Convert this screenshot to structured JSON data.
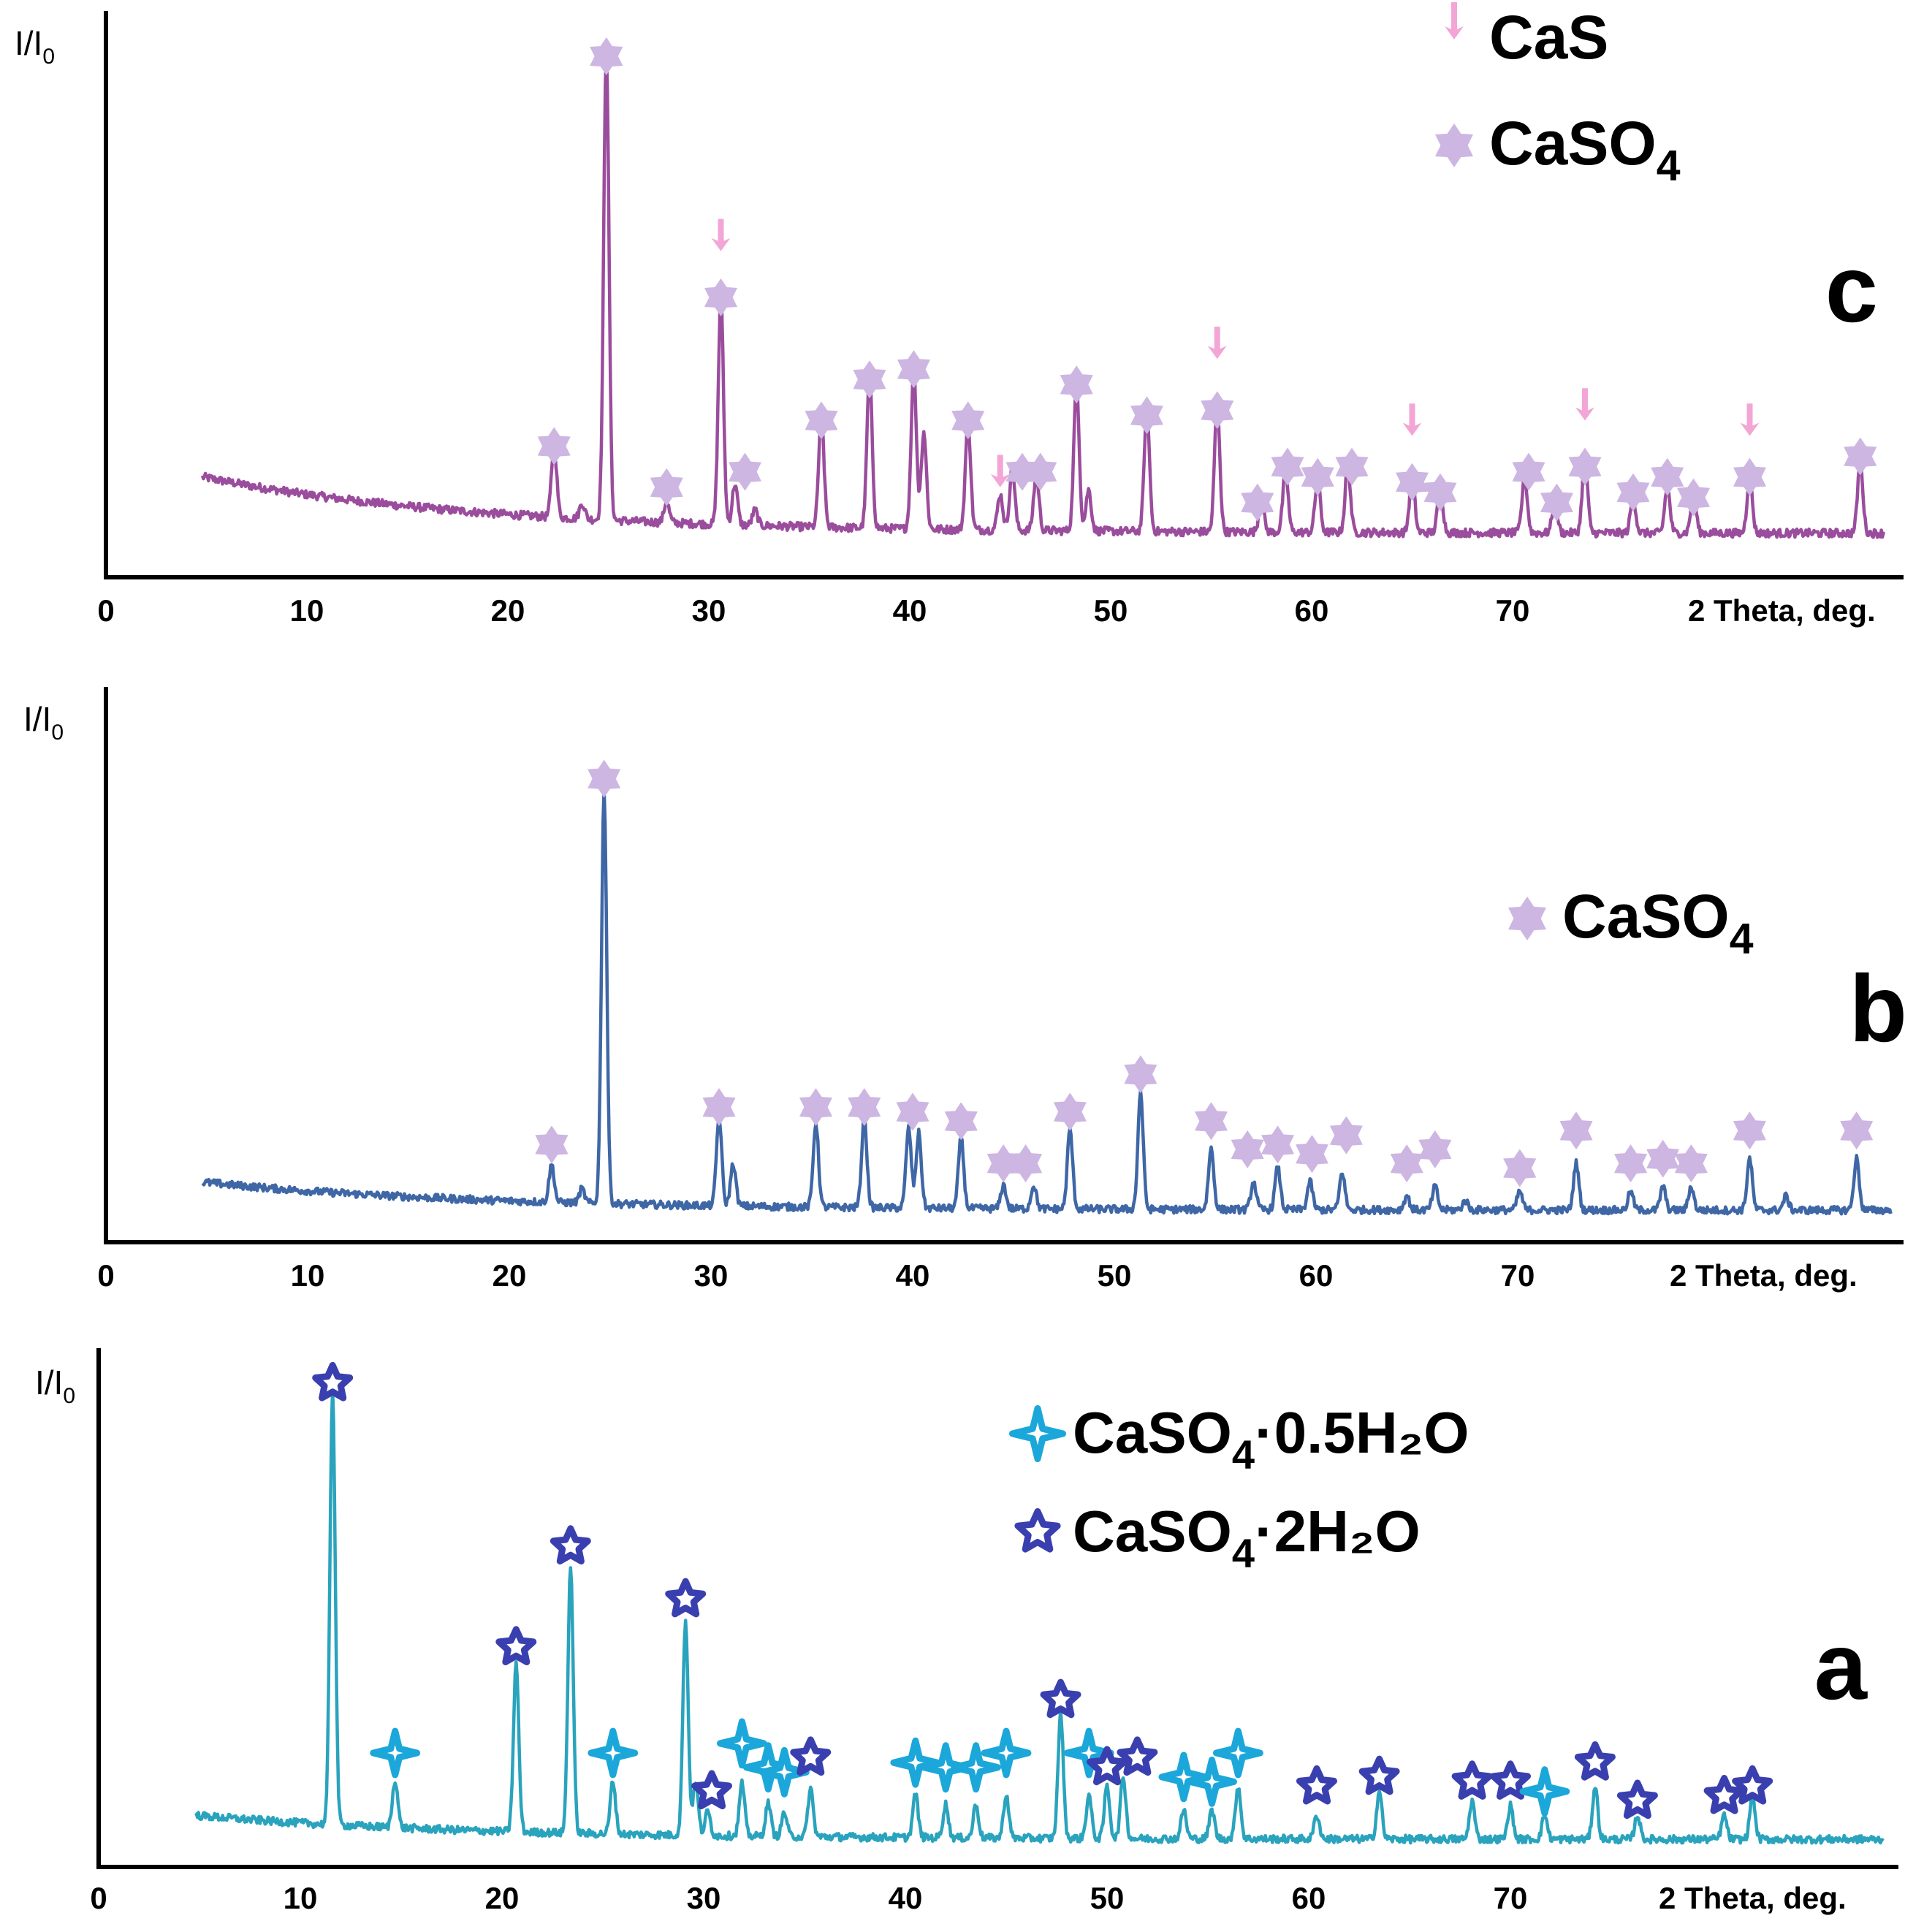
{
  "chart_data": [
    {
      "id": "c",
      "type": "line",
      "panel_label": "c",
      "ylabel": "I/I",
      "ylabel_sub": "0",
      "xlabel": "2 Theta, deg.",
      "xlim": [
        0,
        88
      ],
      "ylim": [
        0,
        100
      ],
      "xticks": [
        0,
        10,
        20,
        30,
        40,
        50,
        60,
        70
      ],
      "line_color": "#9b4d9d",
      "legend": [
        {
          "marker": "arrow",
          "label": "CaS",
          "sub": "",
          "suffix": "",
          "color": "#f3a6d6"
        },
        {
          "marker": "star6",
          "label": "CaSO",
          "sub": "4",
          "suffix": "",
          "color": "#cdb6e2"
        }
      ],
      "background": {
        "start": 17,
        "end": 6
      },
      "series": [
        {
          "name": "diffractogram c",
          "peaks": [
            [
              22.3,
              14
            ],
            [
              23.7,
              3
            ],
            [
              24.9,
              92
            ],
            [
              27.9,
              4
            ],
            [
              30.6,
              44
            ],
            [
              31.3,
              8
            ],
            [
              32.3,
              3
            ],
            [
              35.6,
              22
            ],
            [
              38.0,
              30
            ],
            [
              40.2,
              31
            ],
            [
              40.7,
              19
            ],
            [
              42.9,
              21
            ],
            [
              44.5,
              7
            ],
            [
              45.1,
              12
            ],
            [
              46.3,
              11
            ],
            [
              48.3,
              29
            ],
            [
              48.9,
              8
            ],
            [
              51.8,
              24
            ],
            [
              55.3,
              25
            ],
            [
              57.5,
              6
            ],
            [
              58.7,
              12
            ],
            [
              60.3,
              10
            ],
            [
              61.8,
              13
            ],
            [
              65.0,
              11
            ],
            [
              66.4,
              9
            ],
            [
              70.6,
              11
            ],
            [
              72.1,
              6
            ],
            [
              73.6,
              15
            ],
            [
              76.0,
              7
            ],
            [
              77.7,
              9
            ],
            [
              79.0,
              8
            ],
            [
              81.8,
              11
            ],
            [
              87.3,
              14
            ]
          ]
        }
      ],
      "markers": [
        {
          "kind": "star6",
          "x": 22.3,
          "y": 23
        },
        {
          "kind": "star6",
          "x": 24.9,
          "y": 99
        },
        {
          "kind": "star6",
          "x": 27.9,
          "y": 15
        },
        {
          "kind": "star6",
          "x": 30.6,
          "y": 52
        },
        {
          "kind": "arrow",
          "x": 30.6,
          "y": 61
        },
        {
          "kind": "star6",
          "x": 31.8,
          "y": 18
        },
        {
          "kind": "star6",
          "x": 35.6,
          "y": 28
        },
        {
          "kind": "star6",
          "x": 38.0,
          "y": 36
        },
        {
          "kind": "star6",
          "x": 40.2,
          "y": 38
        },
        {
          "kind": "star6",
          "x": 42.9,
          "y": 28
        },
        {
          "kind": "arrow",
          "x": 44.5,
          "y": 15
        },
        {
          "kind": "star6",
          "x": 45.6,
          "y": 18
        },
        {
          "kind": "star6",
          "x": 46.5,
          "y": 18
        },
        {
          "kind": "star6",
          "x": 48.3,
          "y": 35
        },
        {
          "kind": "star6",
          "x": 51.8,
          "y": 29
        },
        {
          "kind": "star6",
          "x": 55.3,
          "y": 30
        },
        {
          "kind": "arrow",
          "x": 55.3,
          "y": 40
        },
        {
          "kind": "star6",
          "x": 57.3,
          "y": 12
        },
        {
          "kind": "star6",
          "x": 58.8,
          "y": 19
        },
        {
          "kind": "star6",
          "x": 60.3,
          "y": 17
        },
        {
          "kind": "star6",
          "x": 62.0,
          "y": 19
        },
        {
          "kind": "star6",
          "x": 65.0,
          "y": 16
        },
        {
          "kind": "arrow",
          "x": 65.0,
          "y": 25
        },
        {
          "kind": "star6",
          "x": 66.4,
          "y": 14
        },
        {
          "kind": "star6",
          "x": 70.8,
          "y": 18
        },
        {
          "kind": "star6",
          "x": 72.2,
          "y": 12
        },
        {
          "kind": "star6",
          "x": 73.6,
          "y": 19
        },
        {
          "kind": "arrow",
          "x": 73.6,
          "y": 28
        },
        {
          "kind": "star6",
          "x": 76.0,
          "y": 14
        },
        {
          "kind": "star6",
          "x": 77.7,
          "y": 17
        },
        {
          "kind": "star6",
          "x": 79.0,
          "y": 13
        },
        {
          "kind": "star6",
          "x": 81.8,
          "y": 17
        },
        {
          "kind": "arrow",
          "x": 81.8,
          "y": 25
        },
        {
          "kind": "star6",
          "x": 87.3,
          "y": 21
        }
      ]
    },
    {
      "id": "b",
      "type": "line",
      "panel_label": "b",
      "ylabel": "I/I",
      "ylabel_sub": "0",
      "xlabel": "2 Theta, deg.",
      "xlim": [
        0,
        88
      ],
      "ylim": [
        0,
        100
      ],
      "xticks": [
        0,
        10,
        20,
        30,
        40,
        50,
        60,
        70
      ],
      "line_color": "#3f67a6",
      "legend": [
        {
          "marker": "star6",
          "label": "CaSO",
          "sub": "4",
          "suffix": "",
          "color": "#cdb6e2"
        }
      ],
      "background": {
        "start": 10,
        "end": 4
      },
      "series": [
        {
          "name": "diffractogram b",
          "peaks": [
            [
              22.1,
              8
            ],
            [
              23.6,
              3
            ],
            [
              24.7,
              88
            ],
            [
              30.4,
              19
            ],
            [
              31.1,
              9
            ],
            [
              35.2,
              18
            ],
            [
              37.6,
              19
            ],
            [
              39.8,
              17
            ],
            [
              40.3,
              16
            ],
            [
              42.4,
              15
            ],
            [
              44.5,
              5
            ],
            [
              46.0,
              5
            ],
            [
              47.8,
              17
            ],
            [
              51.3,
              25
            ],
            [
              54.8,
              13
            ],
            [
              56.9,
              6
            ],
            [
              58.1,
              9
            ],
            [
              59.7,
              6
            ],
            [
              61.3,
              8
            ],
            [
              64.5,
              3
            ],
            [
              65.9,
              5
            ],
            [
              67.4,
              2
            ],
            [
              70.1,
              4
            ],
            [
              72.9,
              10
            ],
            [
              75.6,
              4
            ],
            [
              77.2,
              5
            ],
            [
              78.6,
              5
            ],
            [
              81.5,
              11
            ],
            [
              83.3,
              3
            ],
            [
              86.8,
              11
            ]
          ]
        }
      ],
      "markers": [
        {
          "kind": "star6",
          "x": 22.1,
          "y": 18
        },
        {
          "kind": "star6",
          "x": 24.7,
          "y": 96
        },
        {
          "kind": "star6",
          "x": 30.4,
          "y": 26
        },
        {
          "kind": "star6",
          "x": 35.2,
          "y": 26
        },
        {
          "kind": "star6",
          "x": 37.6,
          "y": 26
        },
        {
          "kind": "star6",
          "x": 40.0,
          "y": 25
        },
        {
          "kind": "star6",
          "x": 42.4,
          "y": 23
        },
        {
          "kind": "star6",
          "x": 44.5,
          "y": 14
        },
        {
          "kind": "star6",
          "x": 45.6,
          "y": 14
        },
        {
          "kind": "star6",
          "x": 47.8,
          "y": 25
        },
        {
          "kind": "star6",
          "x": 51.3,
          "y": 33
        },
        {
          "kind": "star6",
          "x": 54.8,
          "y": 23
        },
        {
          "kind": "star6",
          "x": 56.6,
          "y": 17
        },
        {
          "kind": "star6",
          "x": 58.1,
          "y": 18
        },
        {
          "kind": "star6",
          "x": 59.8,
          "y": 16
        },
        {
          "kind": "star6",
          "x": 61.5,
          "y": 20
        },
        {
          "kind": "star6",
          "x": 64.5,
          "y": 14
        },
        {
          "kind": "star6",
          "x": 65.9,
          "y": 17
        },
        {
          "kind": "star6",
          "x": 70.1,
          "y": 13
        },
        {
          "kind": "star6",
          "x": 72.9,
          "y": 21
        },
        {
          "kind": "star6",
          "x": 75.6,
          "y": 14
        },
        {
          "kind": "star6",
          "x": 77.2,
          "y": 15
        },
        {
          "kind": "star6",
          "x": 78.6,
          "y": 14
        },
        {
          "kind": "star6",
          "x": 81.5,
          "y": 21
        },
        {
          "kind": "star6",
          "x": 86.8,
          "y": 21
        }
      ]
    },
    {
      "id": "a",
      "type": "line",
      "panel_label": "a",
      "ylabel": "I/I",
      "ylabel_sub": "0",
      "xlabel": "2 Theta, deg.",
      "xlim": [
        0,
        88
      ],
      "ylim": [
        0,
        100
      ],
      "xticks": [
        0,
        10,
        20,
        30,
        40,
        50,
        60,
        70
      ],
      "line_color": "#2aa3bd",
      "legend": [
        {
          "marker": "star4",
          "label": "CaSO",
          "sub": "4",
          "suffix": "·0.5H₂O",
          "color": "#1ca7da"
        },
        {
          "marker": "star5",
          "label": "CaSO",
          "sub": "4",
          "suffix": "·2H₂O",
          "color": "#3a3fb0"
        }
      ],
      "background": {
        "start": 8,
        "end": 3
      },
      "series": [
        {
          "name": "diffractogram a",
          "peaks": [
            [
              11.6,
              91
            ],
            [
              14.7,
              10
            ],
            [
              20.7,
              35
            ],
            [
              23.4,
              56
            ],
            [
              25.5,
              11
            ],
            [
              29.1,
              45
            ],
            [
              29.6,
              11
            ],
            [
              30.2,
              5
            ],
            [
              31.9,
              11
            ],
            [
              33.2,
              7
            ],
            [
              34.0,
              5
            ],
            [
              35.3,
              10
            ],
            [
              40.5,
              9
            ],
            [
              42.0,
              7
            ],
            [
              43.5,
              7
            ],
            [
              45.0,
              9
            ],
            [
              47.7,
              26
            ],
            [
              49.1,
              9
            ],
            [
              50.0,
              11
            ],
            [
              50.8,
              13
            ],
            [
              53.8,
              6
            ],
            [
              55.2,
              6
            ],
            [
              56.5,
              11
            ],
            [
              60.4,
              5
            ],
            [
              63.5,
              10
            ],
            [
              68.1,
              8
            ],
            [
              70.0,
              7
            ],
            [
              71.7,
              5
            ],
            [
              74.2,
              11
            ],
            [
              76.3,
              5
            ],
            [
              80.6,
              5
            ],
            [
              82.0,
              9
            ]
          ]
        }
      ],
      "markers": [
        {
          "kind": "star5",
          "x": 11.6,
          "y": 98
        },
        {
          "kind": "star4",
          "x": 14.7,
          "y": 21
        },
        {
          "kind": "star5",
          "x": 20.7,
          "y": 43
        },
        {
          "kind": "star5",
          "x": 23.4,
          "y": 64
        },
        {
          "kind": "star4",
          "x": 25.5,
          "y": 21
        },
        {
          "kind": "star5",
          "x": 29.1,
          "y": 53
        },
        {
          "kind": "star5",
          "x": 30.4,
          "y": 13
        },
        {
          "kind": "star4",
          "x": 31.9,
          "y": 23
        },
        {
          "kind": "star4",
          "x": 33.2,
          "y": 18
        },
        {
          "kind": "star4",
          "x": 34.0,
          "y": 17
        },
        {
          "kind": "star5",
          "x": 35.3,
          "y": 20
        },
        {
          "kind": "star4",
          "x": 40.5,
          "y": 19
        },
        {
          "kind": "star4",
          "x": 42.0,
          "y": 18
        },
        {
          "kind": "star4",
          "x": 43.5,
          "y": 18
        },
        {
          "kind": "star4",
          "x": 45.0,
          "y": 21
        },
        {
          "kind": "star5",
          "x": 47.7,
          "y": 32
        },
        {
          "kind": "star4",
          "x": 49.1,
          "y": 21
        },
        {
          "kind": "star5",
          "x": 50.0,
          "y": 18
        },
        {
          "kind": "star5",
          "x": 51.5,
          "y": 20
        },
        {
          "kind": "star4",
          "x": 53.8,
          "y": 16
        },
        {
          "kind": "star4",
          "x": 55.2,
          "y": 15
        },
        {
          "kind": "star4",
          "x": 56.5,
          "y": 21
        },
        {
          "kind": "star5",
          "x": 60.4,
          "y": 14
        },
        {
          "kind": "star5",
          "x": 63.5,
          "y": 16
        },
        {
          "kind": "star5",
          "x": 68.1,
          "y": 15
        },
        {
          "kind": "star5",
          "x": 70.0,
          "y": 15
        },
        {
          "kind": "star4",
          "x": 71.7,
          "y": 13
        },
        {
          "kind": "star5",
          "x": 74.2,
          "y": 19
        },
        {
          "kind": "star5",
          "x": 76.3,
          "y": 11
        },
        {
          "kind": "star5",
          "x": 80.6,
          "y": 12
        },
        {
          "kind": "star5",
          "x": 82.0,
          "y": 14
        }
      ]
    }
  ]
}
